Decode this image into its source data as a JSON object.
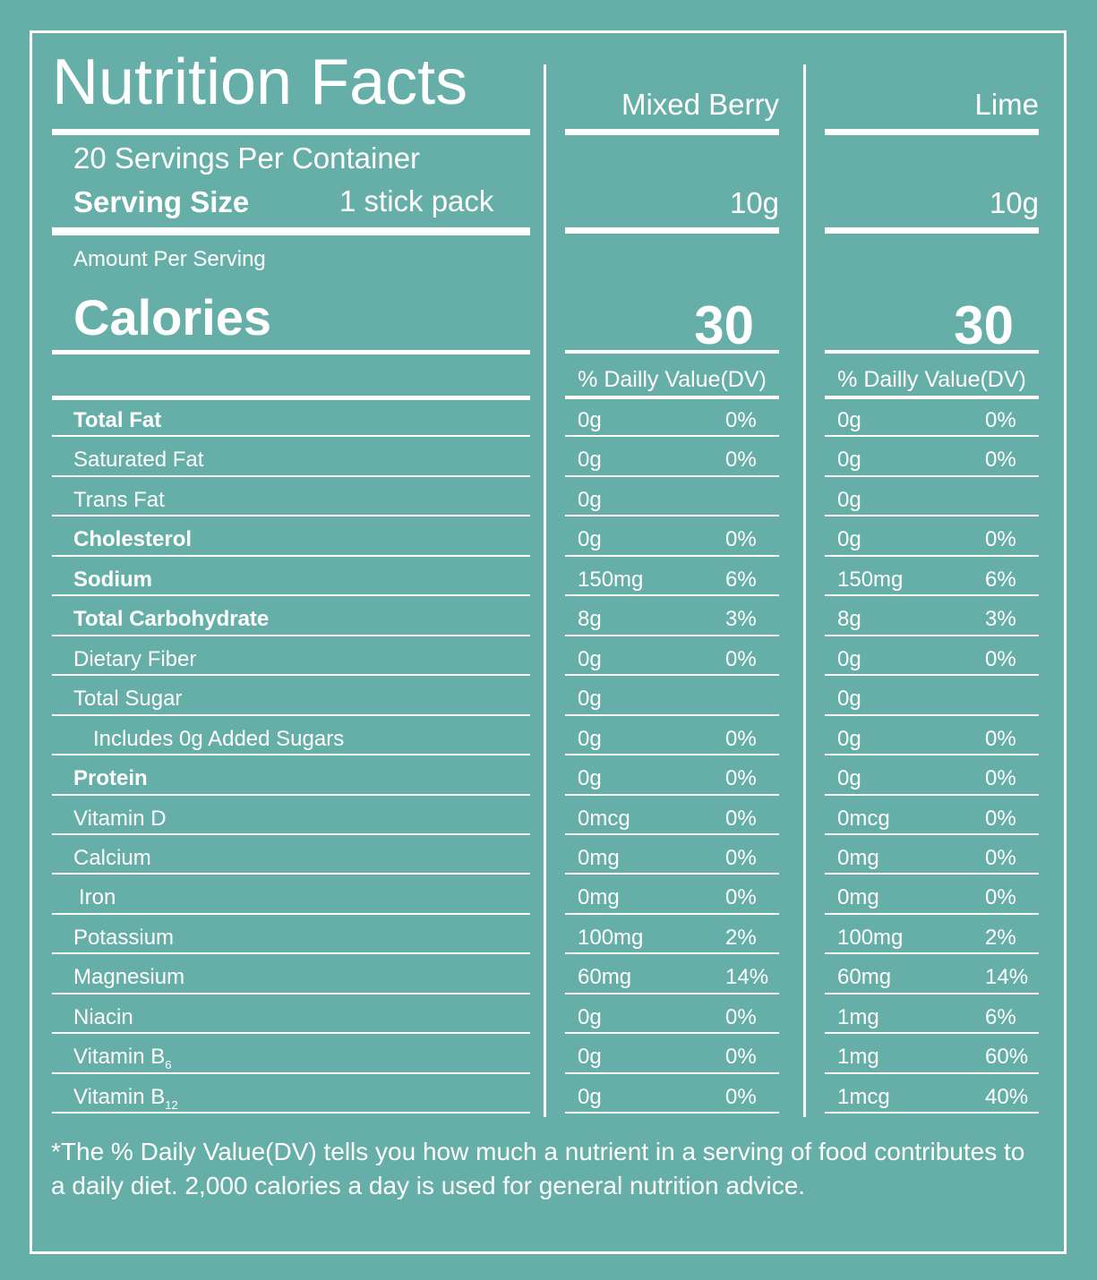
{
  "header": {
    "title": "Nutrition Facts",
    "servings_per_container": "20 Servings Per Container",
    "serving_size_label": "Serving Size",
    "serving_size_value": "1 stick pack",
    "amount_per_serving": "Amount Per Serving",
    "calories_label": "Calories"
  },
  "products": [
    {
      "name": "Mixed Berry",
      "serving_size": "10g",
      "calories": "30",
      "dv_header": "% Dailly Value(DV)"
    },
    {
      "name": "Lime",
      "serving_size": "10g",
      "calories": "30",
      "dv_header": "% Dailly Value(DV)"
    }
  ],
  "nutrients": [
    {
      "label": "Total Fat",
      "bold": true,
      "values": [
        [
          "0g",
          "0%"
        ],
        [
          "0g",
          "0%"
        ]
      ]
    },
    {
      "label": "Saturated Fat",
      "values": [
        [
          "0g",
          "0%"
        ],
        [
          "0g",
          "0%"
        ]
      ]
    },
    {
      "label": "Trans Fat",
      "values": [
        [
          "0g",
          ""
        ],
        [
          "0g",
          ""
        ]
      ]
    },
    {
      "label": "Cholesterol",
      "bold": true,
      "values": [
        [
          "0g",
          "0%"
        ],
        [
          "0g",
          "0%"
        ]
      ]
    },
    {
      "label": "Sodium",
      "bold": true,
      "values": [
        [
          "150mg",
          "6%"
        ],
        [
          "150mg",
          "6%"
        ]
      ]
    },
    {
      "label": "Total Carbohydrate",
      "bold": true,
      "values": [
        [
          "8g",
          "3%"
        ],
        [
          "8g",
          "3%"
        ]
      ]
    },
    {
      "label": "Dietary Fiber",
      "values": [
        [
          "0g",
          "0%"
        ],
        [
          "0g",
          "0%"
        ]
      ]
    },
    {
      "label": "Total Sugar",
      "values": [
        [
          "0g",
          ""
        ],
        [
          "0g",
          ""
        ]
      ]
    },
    {
      "label": "Includes 0g Added Sugars",
      "indent": true,
      "values": [
        [
          "0g",
          "0%"
        ],
        [
          "0g",
          "0%"
        ]
      ]
    },
    {
      "label": "Protein",
      "bold": true,
      "values": [
        [
          "0g",
          "0%"
        ],
        [
          "0g",
          "0%"
        ]
      ]
    },
    {
      "label": "Vitamin D",
      "values": [
        [
          "0mcg",
          "0%"
        ],
        [
          "0mcg",
          "0%"
        ]
      ]
    },
    {
      "label": "Calcium",
      "values": [
        [
          "0mg",
          "0%"
        ],
        [
          "0mg",
          "0%"
        ]
      ]
    },
    {
      "label": "Iron",
      "values": [
        [
          "0mg",
          "0%"
        ],
        [
          "0mg",
          "0%"
        ]
      ]
    },
    {
      "label": "Potassium",
      "values": [
        [
          "100mg",
          "2%"
        ],
        [
          "100mg",
          "2%"
        ]
      ]
    },
    {
      "label": "Magnesium",
      "values": [
        [
          "60mg",
          "14%"
        ],
        [
          "60mg",
          "14%"
        ]
      ]
    },
    {
      "label": "Niacin",
      "values": [
        [
          "0g",
          "0%"
        ],
        [
          "1mg",
          "6%"
        ]
      ]
    },
    {
      "label": "Vitamin B",
      "sub": "6",
      "values": [
        [
          "0g",
          "0%"
        ],
        [
          "1mg",
          "60%"
        ]
      ]
    },
    {
      "label": "Vitamin B",
      "sub": "12",
      "values": [
        [
          "0g",
          "0%"
        ],
        [
          "1mcg",
          "40%"
        ]
      ]
    }
  ],
  "footnote": "*The % Daily Value(DV) tells you how much a nutrient in a serving of food contributes to a daily diet. 2,000 calories a day is used for general nutrition advice.",
  "colors": {
    "background": "#66afa8",
    "foreground": "#ffffff"
  }
}
